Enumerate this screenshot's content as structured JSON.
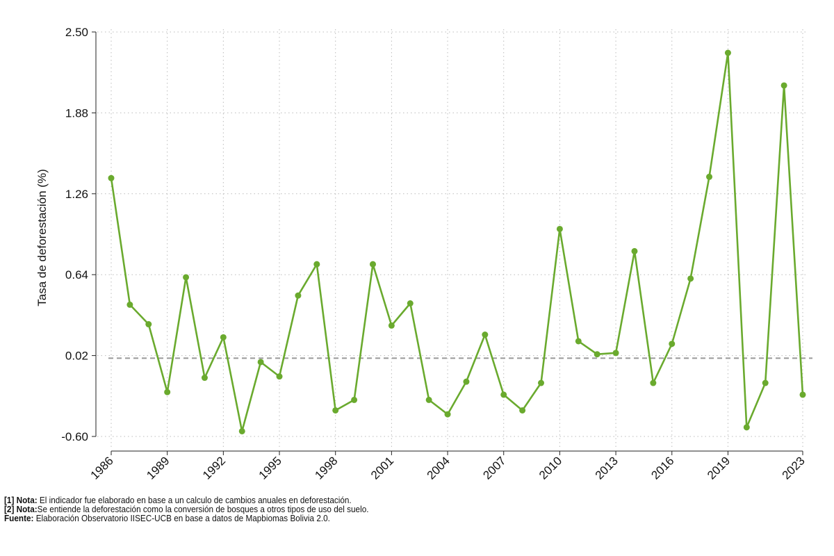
{
  "chart_data": {
    "type": "line",
    "ylabel": "Tasa de deforestación (%)",
    "xlabel": "",
    "ylim": [
      -0.6,
      2.5
    ],
    "yticks": [
      "2.50",
      "1.88",
      "1.26",
      "0.64",
      "0.02",
      "-0.60"
    ],
    "xlim": [
      1986,
      2023
    ],
    "xticks": [
      "1986",
      "1989",
      "1992",
      "1995",
      "1998",
      "2001",
      "2004",
      "2007",
      "2010",
      "2013",
      "2016",
      "2019",
      "2023"
    ],
    "grid": true,
    "reference_line": 0.0,
    "line_color": "#6aaa2e",
    "ref_line_color": "#999999",
    "series": [
      {
        "x": [
          1986,
          1987,
          1988,
          1989,
          1990,
          1991,
          1992,
          1993,
          1994,
          1995,
          1996,
          1997,
          1998,
          1999,
          2000,
          2001,
          2002,
          2003,
          2004,
          2005,
          2006,
          2007,
          2008,
          2009,
          2010,
          2011,
          2012,
          2013,
          2014,
          2015,
          2016,
          2017,
          2018,
          2019,
          2020,
          2021,
          2022,
          2023
        ],
        "values": [
          1.38,
          0.41,
          0.26,
          -0.26,
          0.62,
          -0.15,
          0.16,
          -0.56,
          -0.03,
          -0.14,
          0.48,
          0.72,
          -0.4,
          -0.32,
          0.72,
          0.25,
          0.42,
          -0.32,
          -0.43,
          -0.18,
          0.18,
          -0.28,
          -0.4,
          -0.19,
          0.99,
          0.13,
          0.03,
          0.04,
          0.82,
          -0.19,
          0.11,
          0.61,
          1.39,
          2.34,
          -0.53,
          -0.19,
          2.09,
          -0.28
        ]
      }
    ]
  },
  "notes": {
    "note1_label": "[1] Nota:",
    "note1_text": " El indicador fue elaborado en base a un calculo de cambios anuales en deforestación.",
    "note2_label": "[2] Nota:",
    "note2_text": "Se entiende la deforestación como la conversión de bosques a otros tipos de uso del suelo.",
    "source_label": "Fuente:",
    "source_text": " Elaboración Observatorio IISEC-UCB en base a datos de Mapbiomas Bolivia 2.0."
  }
}
